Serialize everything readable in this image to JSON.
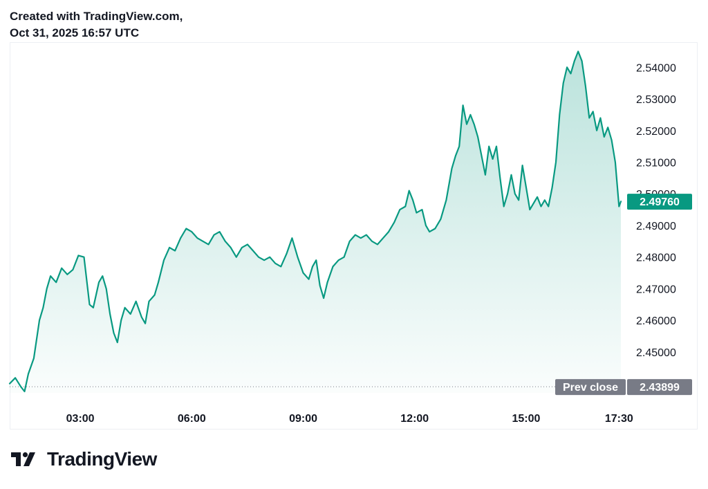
{
  "header": {
    "line1": "Created with TradingView.com,",
    "line2": "Oct 31, 2025 16:57 UTC"
  },
  "footer": {
    "brand": "TradingView",
    "logo_icon": "tradingview-logo-icon"
  },
  "colors": {
    "line": "#089981",
    "area_top": "rgba(8,153,129,0.28)",
    "area_bottom": "rgba(8,153,129,0.02)",
    "last_badge": "#089981",
    "prev_badge": "#787b86",
    "axis_text": "#131722"
  },
  "chart_data": {
    "type": "area",
    "title": "",
    "xlabel": "",
    "ylabel": "",
    "ylim": [
      2.4375,
      2.5475
    ],
    "xlim": [
      1.1,
      17.55
    ],
    "x_ticks": [
      {
        "label": "03:00",
        "value": 3
      },
      {
        "label": "06:00",
        "value": 6
      },
      {
        "label": "09:00",
        "value": 9
      },
      {
        "label": "12:00",
        "value": 12
      },
      {
        "label": "15:00",
        "value": 15
      },
      {
        "label": "17:30",
        "value": 17.5
      }
    ],
    "y_ticks": [
      {
        "label": "2.45000",
        "value": 2.45
      },
      {
        "label": "2.46000",
        "value": 2.46
      },
      {
        "label": "2.47000",
        "value": 2.47
      },
      {
        "label": "2.48000",
        "value": 2.48
      },
      {
        "label": "2.49000",
        "value": 2.49
      },
      {
        "label": "2.50000",
        "value": 2.5
      },
      {
        "label": "2.51000",
        "value": 2.51
      },
      {
        "label": "2.52000",
        "value": 2.52
      },
      {
        "label": "2.53000",
        "value": 2.53
      },
      {
        "label": "2.54000",
        "value": 2.54
      }
    ],
    "last_price": {
      "label": "2.49760",
      "value": 2.4976
    },
    "prev_close": {
      "name": "Prev close",
      "label": "2.43899",
      "value": 2.43899
    },
    "series": [
      {
        "points": [
          [
            1.1,
            2.44
          ],
          [
            1.25,
            2.4418
          ],
          [
            1.4,
            2.439
          ],
          [
            1.5,
            2.4375
          ],
          [
            1.6,
            2.443
          ],
          [
            1.75,
            2.448
          ],
          [
            1.9,
            2.46
          ],
          [
            2.0,
            2.464
          ],
          [
            2.1,
            2.47
          ],
          [
            2.2,
            2.474
          ],
          [
            2.35,
            2.472
          ],
          [
            2.5,
            2.4765
          ],
          [
            2.65,
            2.4745
          ],
          [
            2.8,
            2.476
          ],
          [
            2.95,
            2.4805
          ],
          [
            3.1,
            2.48
          ],
          [
            3.25,
            2.465
          ],
          [
            3.35,
            2.464
          ],
          [
            3.5,
            2.472
          ],
          [
            3.6,
            2.474
          ],
          [
            3.7,
            2.47
          ],
          [
            3.8,
            2.462
          ],
          [
            3.9,
            2.456
          ],
          [
            4.0,
            2.453
          ],
          [
            4.1,
            2.46
          ],
          [
            4.2,
            2.464
          ],
          [
            4.35,
            2.462
          ],
          [
            4.5,
            2.466
          ],
          [
            4.65,
            2.461
          ],
          [
            4.75,
            2.459
          ],
          [
            4.85,
            2.466
          ],
          [
            5.0,
            2.468
          ],
          [
            5.1,
            2.472
          ],
          [
            5.25,
            2.479
          ],
          [
            5.4,
            2.483
          ],
          [
            5.55,
            2.482
          ],
          [
            5.7,
            2.486
          ],
          [
            5.85,
            2.489
          ],
          [
            6.0,
            2.488
          ],
          [
            6.15,
            2.486
          ],
          [
            6.3,
            2.485
          ],
          [
            6.45,
            2.484
          ],
          [
            6.6,
            2.487
          ],
          [
            6.75,
            2.488
          ],
          [
            6.9,
            2.485
          ],
          [
            7.05,
            2.483
          ],
          [
            7.2,
            2.48
          ],
          [
            7.35,
            2.483
          ],
          [
            7.5,
            2.484
          ],
          [
            7.65,
            2.482
          ],
          [
            7.8,
            2.48
          ],
          [
            7.95,
            2.479
          ],
          [
            8.1,
            2.48
          ],
          [
            8.25,
            2.478
          ],
          [
            8.4,
            2.477
          ],
          [
            8.55,
            2.481
          ],
          [
            8.7,
            2.486
          ],
          [
            8.85,
            2.48
          ],
          [
            9.0,
            2.475
          ],
          [
            9.15,
            2.473
          ],
          [
            9.25,
            2.477
          ],
          [
            9.35,
            2.479
          ],
          [
            9.45,
            2.471
          ],
          [
            9.55,
            2.467
          ],
          [
            9.65,
            2.472
          ],
          [
            9.8,
            2.477
          ],
          [
            9.95,
            2.479
          ],
          [
            10.1,
            2.48
          ],
          [
            10.25,
            2.485
          ],
          [
            10.4,
            2.487
          ],
          [
            10.55,
            2.486
          ],
          [
            10.7,
            2.487
          ],
          [
            10.85,
            2.485
          ],
          [
            11.0,
            2.484
          ],
          [
            11.15,
            2.486
          ],
          [
            11.3,
            2.488
          ],
          [
            11.45,
            2.491
          ],
          [
            11.6,
            2.495
          ],
          [
            11.75,
            2.496
          ],
          [
            11.85,
            2.501
          ],
          [
            11.95,
            2.498
          ],
          [
            12.05,
            2.494
          ],
          [
            12.2,
            2.495
          ],
          [
            12.3,
            2.49
          ],
          [
            12.4,
            2.488
          ],
          [
            12.55,
            2.489
          ],
          [
            12.7,
            2.492
          ],
          [
            12.85,
            2.498
          ],
          [
            13.0,
            2.508
          ],
          [
            13.1,
            2.512
          ],
          [
            13.2,
            2.515
          ],
          [
            13.3,
            2.528
          ],
          [
            13.4,
            2.522
          ],
          [
            13.5,
            2.525
          ],
          [
            13.6,
            2.522
          ],
          [
            13.7,
            2.518
          ],
          [
            13.8,
            2.512
          ],
          [
            13.9,
            2.506
          ],
          [
            14.0,
            2.515
          ],
          [
            14.1,
            2.511
          ],
          [
            14.2,
            2.515
          ],
          [
            14.3,
            2.505
          ],
          [
            14.4,
            2.496
          ],
          [
            14.5,
            2.5
          ],
          [
            14.6,
            2.506
          ],
          [
            14.7,
            2.5
          ],
          [
            14.8,
            2.498
          ],
          [
            14.9,
            2.509
          ],
          [
            15.0,
            2.502
          ],
          [
            15.1,
            2.495
          ],
          [
            15.2,
            2.497
          ],
          [
            15.3,
            2.499
          ],
          [
            15.4,
            2.496
          ],
          [
            15.5,
            2.498
          ],
          [
            15.6,
            2.496
          ],
          [
            15.7,
            2.502
          ],
          [
            15.8,
            2.51
          ],
          [
            15.9,
            2.525
          ],
          [
            16.0,
            2.535
          ],
          [
            16.1,
            2.54
          ],
          [
            16.2,
            2.538
          ],
          [
            16.3,
            2.542
          ],
          [
            16.4,
            2.545
          ],
          [
            16.5,
            2.542
          ],
          [
            16.6,
            2.534
          ],
          [
            16.7,
            2.524
          ],
          [
            16.8,
            2.526
          ],
          [
            16.9,
            2.52
          ],
          [
            17.0,
            2.524
          ],
          [
            17.1,
            2.518
          ],
          [
            17.2,
            2.521
          ],
          [
            17.3,
            2.517
          ],
          [
            17.4,
            2.51
          ],
          [
            17.45,
            2.503
          ],
          [
            17.5,
            2.496
          ],
          [
            17.55,
            2.4976
          ]
        ]
      }
    ]
  }
}
